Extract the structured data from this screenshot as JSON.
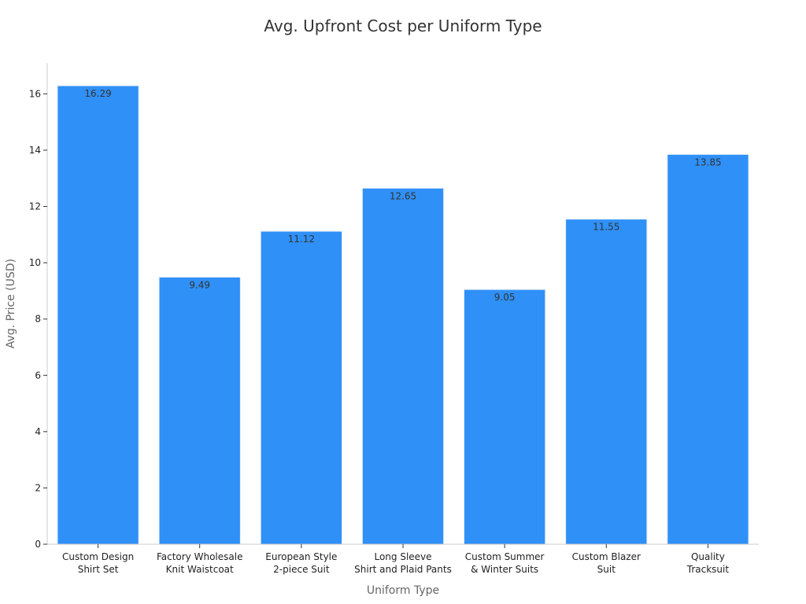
{
  "chart_data": {
    "type": "bar",
    "title": "Avg. Upfront Cost per Uniform Type",
    "xlabel": "Uniform Type",
    "ylabel": "Avg. Price (USD)",
    "categories": [
      [
        "Custom Design",
        "Shirt Set"
      ],
      [
        "Factory Wholesale",
        "Knit Waistcoat"
      ],
      [
        "European Style",
        "2-piece Suit"
      ],
      [
        "Long Sleeve",
        "Shirt and Plaid Pants"
      ],
      [
        "Custom Summer",
        "& Winter Suits"
      ],
      [
        "Custom Blazer",
        "Suit"
      ],
      [
        "Quality",
        "Tracksuit"
      ]
    ],
    "values": [
      16.29,
      9.49,
      11.12,
      12.65,
      9.05,
      11.55,
      13.85
    ],
    "value_labels": [
      "16.29",
      "9.49",
      "11.12",
      "12.65",
      "9.05",
      "11.55",
      "13.85"
    ],
    "ylim": [
      0,
      17.1
    ],
    "yticks": [
      0,
      2,
      4,
      6,
      8,
      10,
      12,
      14,
      16
    ],
    "grid": false,
    "legend": "none",
    "colors": {
      "bar": "#2f90f7",
      "bar_edge": "#e8f0fb"
    }
  }
}
